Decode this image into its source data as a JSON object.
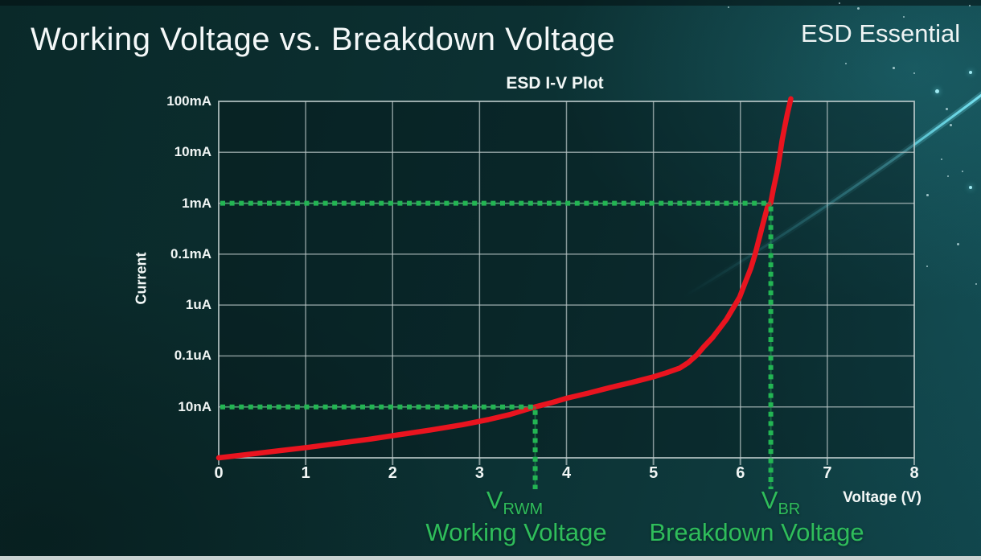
{
  "slide": {
    "title": "Working Voltage vs. Breakdown Voltage",
    "brand": "ESD Essential"
  },
  "chart_data": {
    "type": "line",
    "title": "ESD I-V Plot",
    "xlabel": "Voltage (V)",
    "ylabel": "Current",
    "xlim": [
      0,
      8
    ],
    "x_ticks": [
      "0",
      "1",
      "2",
      "3",
      "4",
      "5",
      "6",
      "7",
      "8"
    ],
    "y_axis_scale": "log-stylized",
    "y_tick_labels": [
      "100mA",
      "10mA",
      "1mA",
      "0.1mA",
      "1uA",
      "0.1uA",
      "10nA"
    ],
    "grid": true,
    "legend": "none",
    "curve_color": "#e9141f",
    "accent_green": "#2fbd5b",
    "series": [
      {
        "name": "ESD I-V curve",
        "color": "#e9141f",
        "points": [
          [
            0.0,
            7.0
          ],
          [
            0.35,
            6.93
          ],
          [
            0.7,
            6.86
          ],
          [
            1.05,
            6.79
          ],
          [
            1.4,
            6.71
          ],
          [
            1.75,
            6.63
          ],
          [
            2.1,
            6.54
          ],
          [
            2.45,
            6.45
          ],
          [
            2.8,
            6.35
          ],
          [
            3.1,
            6.25
          ],
          [
            3.35,
            6.15
          ],
          [
            3.64,
            6.0
          ],
          [
            3.82,
            5.92
          ],
          [
            4.0,
            5.83
          ],
          [
            4.25,
            5.73
          ],
          [
            4.5,
            5.62
          ],
          [
            4.75,
            5.52
          ],
          [
            5.0,
            5.41
          ],
          [
            5.15,
            5.33
          ],
          [
            5.3,
            5.24
          ],
          [
            5.4,
            5.13
          ],
          [
            5.5,
            4.98
          ],
          [
            5.58,
            4.82
          ],
          [
            5.68,
            4.64
          ],
          [
            5.76,
            4.46
          ],
          [
            5.84,
            4.28
          ],
          [
            5.91,
            4.08
          ],
          [
            5.99,
            3.85
          ],
          [
            6.05,
            3.58
          ],
          [
            6.12,
            3.28
          ],
          [
            6.17,
            3.0
          ],
          [
            6.22,
            2.67
          ],
          [
            6.26,
            2.4
          ],
          [
            6.31,
            2.08
          ],
          [
            6.35,
            1.99
          ],
          [
            6.38,
            1.72
          ],
          [
            6.42,
            1.4
          ],
          [
            6.45,
            1.1
          ],
          [
            6.48,
            0.76
          ],
          [
            6.51,
            0.5
          ],
          [
            6.54,
            0.25
          ],
          [
            6.56,
            0.1
          ],
          [
            6.58,
            -0.05
          ]
        ]
      }
    ],
    "annotations": [
      {
        "symbol": "V",
        "subscript": "RWM",
        "caption": "Working Voltage",
        "voltage": 3.64,
        "current": "10nA",
        "row": 6
      },
      {
        "symbol": "V",
        "subscript": "BR",
        "caption": "Breakdown Voltage",
        "voltage": 6.35,
        "current": "1mA",
        "row": 2
      }
    ]
  }
}
